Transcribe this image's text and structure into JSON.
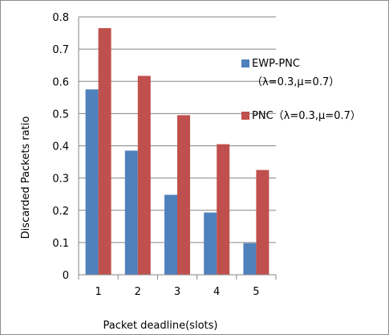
{
  "chart_data": {
    "type": "bar",
    "title": "",
    "xlabel": "Packet deadline(slots)",
    "ylabel": "Discarded  Packets  ratio",
    "categories": [
      "1",
      "2",
      "3",
      "4",
      "5"
    ],
    "ylim": [
      0,
      0.8
    ],
    "yticks": [
      "0",
      "0.1",
      "0.2",
      "0.3",
      "0.4",
      "0.5",
      "0.6",
      "0.7",
      "0.8"
    ],
    "grid": true,
    "legend_position": "right",
    "series": [
      {
        "name_line1": "EWP-PNC",
        "name_line2": "（λ=0.3,μ=0.7）",
        "color": "#4f81bd",
        "values": [
          0.575,
          0.385,
          0.248,
          0.193,
          0.098
        ]
      },
      {
        "name_line1": "PNC（λ=0.3,μ=0.7）",
        "name_line2": "",
        "color": "#c0504d",
        "values": [
          0.765,
          0.617,
          0.495,
          0.405,
          0.325
        ]
      }
    ]
  }
}
